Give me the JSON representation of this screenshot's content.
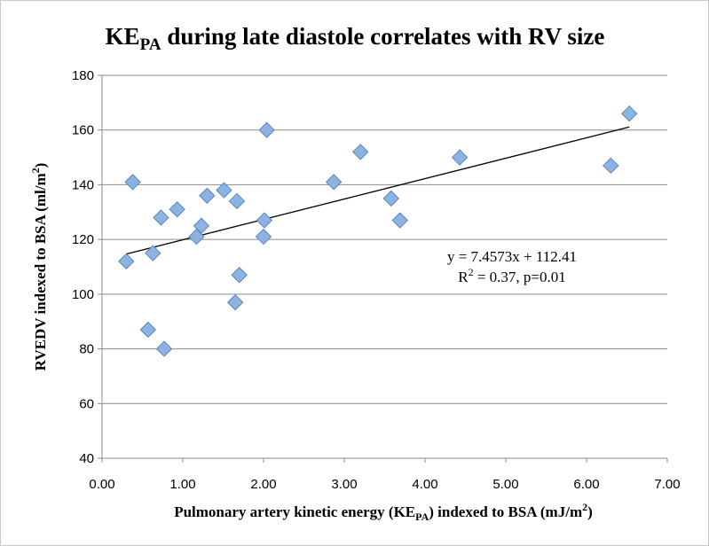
{
  "chart_data": {
    "type": "scatter",
    "title": {
      "prefix": "KE",
      "subscript": "PA",
      "suffix": " during late diastole correlates with RV size"
    },
    "xlabel": {
      "prefix": "Pulmonary artery kinetic energy (KE",
      "subscript": "PA",
      "middle": ") indexed to BSA (mJ/m",
      "superscript": "2",
      "suffix": ")"
    },
    "ylabel": {
      "prefix": "RVEDV indexed to BSA (ml/m",
      "superscript": "2",
      "suffix": ")"
    },
    "xlim": [
      0,
      7
    ],
    "ylim": [
      40,
      180
    ],
    "x_ticks": [
      {
        "value": 0,
        "label": "0.00"
      },
      {
        "value": 1,
        "label": "1.00"
      },
      {
        "value": 2,
        "label": "2.00"
      },
      {
        "value": 3,
        "label": "3.00"
      },
      {
        "value": 4,
        "label": "4.00"
      },
      {
        "value": 5,
        "label": "5.00"
      },
      {
        "value": 6,
        "label": "6.00"
      },
      {
        "value": 7,
        "label": "7.00"
      }
    ],
    "y_ticks": [
      {
        "value": 40,
        "label": "40"
      },
      {
        "value": 60,
        "label": "60"
      },
      {
        "value": 80,
        "label": "80"
      },
      {
        "value": 100,
        "label": "100"
      },
      {
        "value": 120,
        "label": "120"
      },
      {
        "value": 140,
        "label": "140"
      },
      {
        "value": 160,
        "label": "160"
      },
      {
        "value": 180,
        "label": "180"
      }
    ],
    "grid": true,
    "marker": {
      "shape": "diamond",
      "fill": "#8db3e2",
      "stroke": "#5a86bd"
    },
    "points": [
      {
        "x": 0.3,
        "y": 112
      },
      {
        "x": 0.38,
        "y": 141
      },
      {
        "x": 0.57,
        "y": 87
      },
      {
        "x": 0.63,
        "y": 115
      },
      {
        "x": 0.73,
        "y": 128
      },
      {
        "x": 0.77,
        "y": 80
      },
      {
        "x": 0.93,
        "y": 131
      },
      {
        "x": 1.17,
        "y": 121
      },
      {
        "x": 1.23,
        "y": 125
      },
      {
        "x": 1.3,
        "y": 136
      },
      {
        "x": 1.51,
        "y": 138
      },
      {
        "x": 1.65,
        "y": 97
      },
      {
        "x": 1.67,
        "y": 134
      },
      {
        "x": 1.7,
        "y": 107
      },
      {
        "x": 2.0,
        "y": 121
      },
      {
        "x": 2.01,
        "y": 127
      },
      {
        "x": 2.04,
        "y": 160
      },
      {
        "x": 2.87,
        "y": 141
      },
      {
        "x": 3.2,
        "y": 152
      },
      {
        "x": 3.58,
        "y": 135
      },
      {
        "x": 3.69,
        "y": 127
      },
      {
        "x": 4.43,
        "y": 150
      },
      {
        "x": 6.3,
        "y": 147
      },
      {
        "x": 6.53,
        "y": 166
      }
    ],
    "trendline": {
      "slope": 7.4573,
      "intercept": 112.41,
      "x_range": [
        0.3,
        6.53
      ],
      "color": "#000000"
    },
    "annotations": {
      "equation": "y = 7.4573x + 112.41",
      "r2_prefix": "R",
      "r2_superscript": "2",
      "r2_suffix": " = 0.37, p=0.01"
    },
    "colors": {
      "grid": "#8c8c8c",
      "axis": "#8c8c8c"
    }
  }
}
